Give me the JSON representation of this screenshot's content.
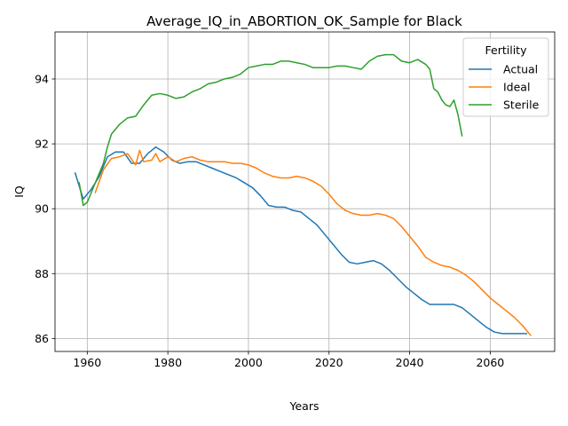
{
  "chart_data": {
    "type": "line",
    "title": "Average_IQ_in_ABORTION_OK_Sample for Black",
    "xlabel": "Years",
    "ylabel": "IQ",
    "xlim": [
      1952,
      2076
    ],
    "ylim": [
      85.6,
      95.45
    ],
    "xticks": [
      1960,
      1980,
      2000,
      2020,
      2040,
      2060
    ],
    "yticks": [
      86,
      88,
      90,
      92,
      94
    ],
    "grid": true,
    "legend": {
      "title": "Fertility",
      "placement": "top-right"
    },
    "series": [
      {
        "name": "Actual",
        "color": "#1f77b4",
        "x": [
          1957,
          1959,
          1961,
          1963,
          1965,
          1967,
          1969,
          1971,
          1973,
          1975,
          1977,
          1979,
          1981,
          1983,
          1985,
          1987,
          1989,
          1991,
          1993,
          1995,
          1997,
          1999,
          2001,
          2003,
          2005,
          2007,
          2009,
          2011,
          2013,
          2015,
          2017,
          2019,
          2021,
          2023,
          2025,
          2027,
          2029,
          2031,
          2033,
          2035,
          2037,
          2039,
          2041,
          2043,
          2045,
          2047,
          2049,
          2051,
          2053,
          2055,
          2057,
          2059,
          2061,
          2063,
          2065,
          2067,
          2069
        ],
        "y": [
          91.1,
          90.3,
          90.6,
          91.0,
          91.6,
          91.75,
          91.75,
          91.4,
          91.4,
          91.7,
          91.9,
          91.75,
          91.5,
          91.4,
          91.45,
          91.45,
          91.35,
          91.25,
          91.15,
          91.05,
          90.95,
          90.8,
          90.65,
          90.4,
          90.1,
          90.05,
          90.05,
          89.95,
          89.9,
          89.7,
          89.5,
          89.2,
          88.9,
          88.6,
          88.35,
          88.3,
          88.35,
          88.4,
          88.3,
          88.1,
          87.85,
          87.6,
          87.4,
          87.2,
          87.05,
          87.05,
          87.05,
          87.05,
          86.95,
          86.75,
          86.55,
          86.35,
          86.2,
          86.15,
          86.15,
          86.15,
          86.15
        ]
      },
      {
        "name": "Ideal",
        "color": "#ff7f0e",
        "x": [
          1962,
          1964,
          1966,
          1968,
          1970,
          1972,
          1973,
          1974,
          1976,
          1977,
          1978,
          1980,
          1982,
          1984,
          1986,
          1988,
          1990,
          1992,
          1994,
          1996,
          1998,
          2000,
          2002,
          2004,
          2006,
          2008,
          2010,
          2012,
          2014,
          2016,
          2018,
          2020,
          2022,
          2024,
          2026,
          2028,
          2030,
          2032,
          2034,
          2036,
          2038,
          2040,
          2042,
          2044,
          2046,
          2048,
          2050,
          2052,
          2054,
          2056,
          2058,
          2060,
          2062,
          2064,
          2066,
          2068,
          2070
        ],
        "y": [
          90.5,
          91.2,
          91.55,
          91.6,
          91.7,
          91.35,
          91.8,
          91.45,
          91.5,
          91.7,
          91.45,
          91.6,
          91.45,
          91.55,
          91.6,
          91.5,
          91.45,
          91.45,
          91.45,
          91.4,
          91.4,
          91.35,
          91.25,
          91.1,
          91.0,
          90.95,
          90.95,
          91.0,
          90.95,
          90.85,
          90.7,
          90.45,
          90.15,
          89.95,
          89.85,
          89.8,
          89.8,
          89.85,
          89.8,
          89.7,
          89.45,
          89.15,
          88.85,
          88.5,
          88.35,
          88.25,
          88.2,
          88.1,
          87.95,
          87.75,
          87.5,
          87.25,
          87.05,
          86.85,
          86.65,
          86.4,
          86.1
        ]
      },
      {
        "name": "Sterile",
        "color": "#2ca02c",
        "x": [
          1958,
          1959,
          1960,
          1962,
          1964,
          1965,
          1966,
          1968,
          1970,
          1972,
          1974,
          1976,
          1978,
          1980,
          1982,
          1984,
          1986,
          1988,
          1990,
          1992,
          1994,
          1996,
          1998,
          2000,
          2002,
          2004,
          2006,
          2008,
          2010,
          2012,
          2014,
          2016,
          2018,
          2020,
          2022,
          2024,
          2026,
          2028,
          2030,
          2032,
          2034,
          2036,
          2038,
          2040,
          2042,
          2044,
          2045,
          2046,
          2047,
          2048,
          2049,
          2050,
          2051,
          2052,
          2053
        ],
        "y": [
          90.8,
          90.1,
          90.2,
          90.8,
          91.4,
          91.9,
          92.3,
          92.6,
          92.8,
          92.85,
          93.2,
          93.5,
          93.55,
          93.5,
          93.4,
          93.45,
          93.6,
          93.7,
          93.85,
          93.9,
          94.0,
          94.05,
          94.15,
          94.35,
          94.4,
          94.45,
          94.45,
          94.55,
          94.55,
          94.5,
          94.45,
          94.35,
          94.35,
          94.35,
          94.4,
          94.4,
          94.35,
          94.3,
          94.55,
          94.7,
          94.75,
          94.75,
          94.55,
          94.5,
          94.6,
          94.45,
          94.3,
          93.7,
          93.6,
          93.35,
          93.2,
          93.15,
          93.35,
          92.9,
          92.25
        ]
      }
    ]
  }
}
